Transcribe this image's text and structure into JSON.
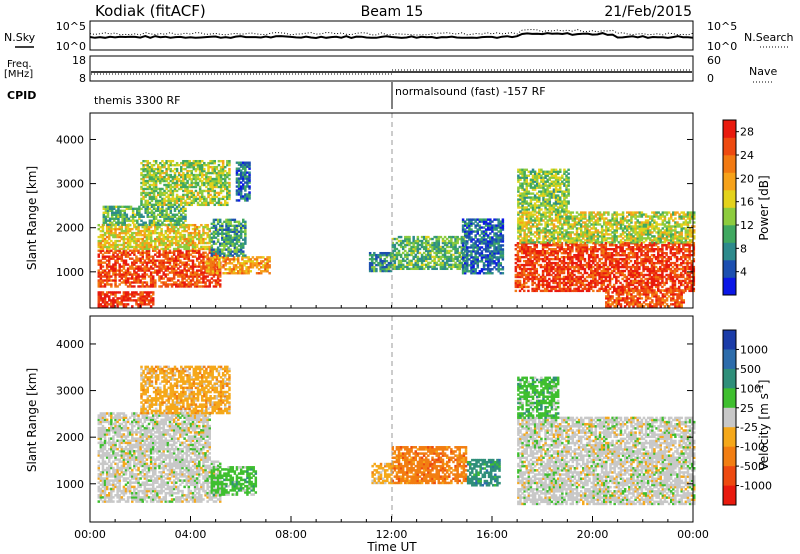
{
  "header": {
    "station": "Kodiak (fitACF)",
    "beam": "Beam 15",
    "date": "21/Feb/2015"
  },
  "top_panels": {
    "nsky_label": "N.Sky",
    "nsearch_label": "N.Search",
    "freq_label_1": "Freq.",
    "freq_label_2": "[MHz]",
    "nave_label": "Nave",
    "cpid_label": "CPID",
    "noise_ticks_left": [
      "10^5",
      "10^0"
    ],
    "noise_ticks_right": [
      "10^5",
      "10^0"
    ],
    "freq_ticks_left": [
      "18",
      "8"
    ],
    "nave_ticks_right": [
      "60",
      "0"
    ],
    "cpid_segments": [
      {
        "label": "themis 3300 RF",
        "start_hour": 0
      },
      {
        "label": "normalsound (fast) -157 RF",
        "start_hour": 12
      }
    ]
  },
  "chart_data": [
    {
      "type": "heatmap",
      "name": "power",
      "xlabel": "",
      "ylabel": "Slant Range [km]",
      "xlim": [
        0,
        24
      ],
      "ylim": [
        180,
        4600
      ],
      "yticks": [
        1000,
        2000,
        3000,
        4000
      ],
      "colorbar": {
        "label": "Power [dB]",
        "ticks": [
          "4",
          "8",
          "12",
          "16",
          "20",
          "24",
          "28"
        ],
        "range": [
          0,
          30
        ],
        "colors": [
          "#0b17e6",
          "#1c4fb0",
          "#2d8a8c",
          "#40a860",
          "#8dcc3e",
          "#e3d21b",
          "#f6a21a",
          "#f27a12",
          "#ee4a10",
          "#e91a0e"
        ]
      },
      "echo_regions": [
        {
          "t0": 0.3,
          "t1": 5.2,
          "r0": 650,
          "r1": 1500,
          "value": 26
        },
        {
          "t0": 0.3,
          "t1": 4.8,
          "r0": 1500,
          "r1": 2050,
          "value": 17
        },
        {
          "t0": 0.5,
          "t1": 3.8,
          "r0": 2050,
          "r1": 2500,
          "value": 11
        },
        {
          "t0": 2.0,
          "t1": 5.5,
          "r0": 2500,
          "r1": 3500,
          "value": 14
        },
        {
          "t0": 4.6,
          "t1": 7.1,
          "r0": 950,
          "r1": 1350,
          "value": 20
        },
        {
          "t0": 4.8,
          "t1": 6.2,
          "r0": 1350,
          "r1": 2200,
          "value": 9
        },
        {
          "t0": 5.8,
          "t1": 6.3,
          "r0": 2600,
          "r1": 3500,
          "value": 6
        },
        {
          "t0": 11.1,
          "t1": 12.0,
          "r0": 1000,
          "r1": 1450,
          "value": 8
        },
        {
          "t0": 12.0,
          "t1": 15.0,
          "r0": 1050,
          "r1": 1800,
          "value": 11
        },
        {
          "t0": 14.8,
          "t1": 16.4,
          "r0": 950,
          "r1": 2200,
          "value": 6
        },
        {
          "t0": 16.9,
          "t1": 24.0,
          "r0": 550,
          "r1": 1650,
          "value": 27
        },
        {
          "t0": 17.0,
          "t1": 24.0,
          "r0": 1650,
          "r1": 2350,
          "value": 15
        },
        {
          "t0": 17.0,
          "t1": 19.0,
          "r0": 2350,
          "r1": 3300,
          "value": 13
        },
        {
          "t0": 20.5,
          "t1": 23.6,
          "r0": 200,
          "r1": 600,
          "value": 25
        },
        {
          "t0": 0.3,
          "t1": 2.5,
          "r0": 200,
          "r1": 550,
          "value": 27
        }
      ]
    },
    {
      "type": "heatmap",
      "name": "velocity",
      "xlabel": "Time UT",
      "ylabel": "Slant Range [km]",
      "xlim": [
        0,
        24
      ],
      "ylim": [
        180,
        4600
      ],
      "xticks": [
        "00:00",
        "04:00",
        "08:00",
        "12:00",
        "16:00",
        "20:00",
        "00:00"
      ],
      "yticks": [
        1000,
        2000,
        3000,
        4000
      ],
      "colorbar": {
        "label": "Velocity [m s^-1]",
        "ticks": [
          "1000",
          "500",
          "100",
          "25",
          "-25",
          "-100",
          "-500",
          "-1000"
        ],
        "colors": [
          "#1b3ca8",
          "#2d6cab",
          "#2f8f7a",
          "#3fbf2f",
          "#c8c8c8",
          "#f5a81a",
          "#f27e12",
          "#ee4a10",
          "#e91a0e"
        ]
      },
      "echo_regions": [
        {
          "t0": 0.3,
          "t1": 5.2,
          "r0": 600,
          "r1": 1500,
          "class": 4
        },
        {
          "t0": 0.3,
          "t1": 4.8,
          "r0": 1500,
          "r1": 2500,
          "class": 4
        },
        {
          "t0": 2.0,
          "t1": 5.5,
          "r0": 2500,
          "r1": 3500,
          "class": 5
        },
        {
          "t0": 4.8,
          "t1": 6.6,
          "r0": 750,
          "r1": 1350,
          "class": 3
        },
        {
          "t0": 11.2,
          "t1": 12.0,
          "r0": 1000,
          "r1": 1450,
          "class": 5
        },
        {
          "t0": 12.0,
          "t1": 15.0,
          "r0": 1000,
          "r1": 1800,
          "class": 6
        },
        {
          "t0": 15.0,
          "t1": 16.3,
          "r0": 950,
          "r1": 1500,
          "class": 2
        },
        {
          "t0": 17.0,
          "t1": 24.0,
          "r0": 550,
          "r1": 2400,
          "class": 4
        },
        {
          "t0": 17.0,
          "t1": 18.6,
          "r0": 2400,
          "r1": 3300,
          "class": 3
        }
      ]
    }
  ]
}
